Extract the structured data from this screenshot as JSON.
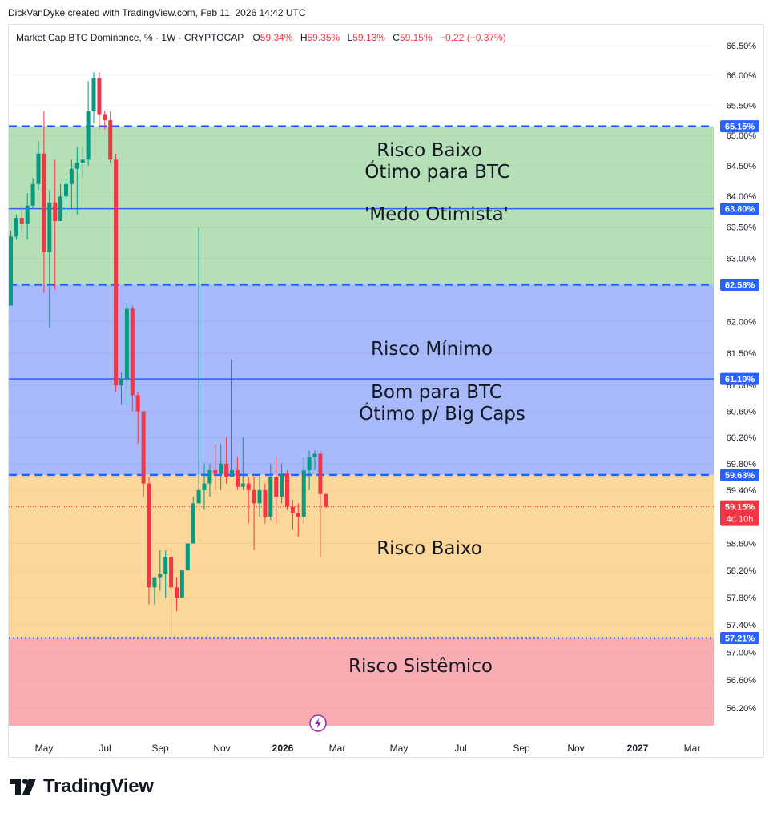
{
  "credit": "DickVanDyke created with TradingView.com, Feb 11, 2026 14:42 UTC",
  "header": {
    "symbol": "Market Cap BTC Dominance, % · 1W · CRYPTOCAP",
    "o_label": "O",
    "o_value": "59.34%",
    "h_label": "H",
    "h_value": "59.35%",
    "l_label": "L",
    "l_value": "59.13%",
    "c_label": "C",
    "c_value": "59.15%",
    "change": "−0.22 (−0.37%)"
  },
  "brand": "TradingView",
  "colors": {
    "up": "#089981",
    "down": "#f23645",
    "zone_green": "#b5dfb6",
    "zone_blue": "#a7b8fb",
    "zone_orange": "#fbd89a",
    "zone_red": "#f9adb3",
    "line_blue": "#2962ff",
    "label_blue": "#2962ff",
    "price_red": "#f23645"
  },
  "chart_data": {
    "type": "candlestick",
    "title": "Market Cap BTC Dominance, % · 1W · CRYPTOCAP",
    "y_scale": "log",
    "ylim": [
      55.95,
      66.85
    ],
    "y_ticks": [
      "66.50%",
      "66.00%",
      "65.50%",
      "65.00%",
      "64.50%",
      "64.00%",
      "63.50%",
      "63.00%",
      "62.00%",
      "61.50%",
      "61.00%",
      "60.60%",
      "60.20%",
      "59.80%",
      "59.40%",
      "58.60%",
      "58.20%",
      "57.80%",
      "57.40%",
      "57.00%",
      "56.60%",
      "56.20%"
    ],
    "x_ticks": [
      "May",
      "Jul",
      "Sep",
      "Nov",
      "2026",
      "Mar",
      "May",
      "Jul",
      "Sep",
      "Nov",
      "2027",
      "Mar"
    ],
    "candles": [
      {
        "o": 62.25,
        "h": 63.45,
        "l": 62.25,
        "c": 63.35
      },
      {
        "o": 63.35,
        "h": 63.7,
        "l": 63.3,
        "c": 63.65
      },
      {
        "o": 63.65,
        "h": 63.85,
        "l": 63.4,
        "c": 63.55
      },
      {
        "o": 63.55,
        "h": 64.05,
        "l": 63.3,
        "c": 63.85
      },
      {
        "o": 63.85,
        "h": 64.3,
        "l": 63.8,
        "c": 64.2
      },
      {
        "o": 64.2,
        "h": 64.9,
        "l": 64.1,
        "c": 64.7
      },
      {
        "o": 64.7,
        "h": 65.4,
        "l": 62.45,
        "c": 63.1
      },
      {
        "o": 63.1,
        "h": 64.1,
        "l": 61.9,
        "c": 63.9
      },
      {
        "o": 63.9,
        "h": 64.6,
        "l": 62.5,
        "c": 63.6
      },
      {
        "o": 63.6,
        "h": 64.2,
        "l": 63.6,
        "c": 64.0
      },
      {
        "o": 64.0,
        "h": 64.3,
        "l": 63.7,
        "c": 64.2
      },
      {
        "o": 64.2,
        "h": 64.6,
        "l": 63.8,
        "c": 64.45
      },
      {
        "o": 64.45,
        "h": 64.8,
        "l": 63.7,
        "c": 64.55
      },
      {
        "o": 64.55,
        "h": 64.8,
        "l": 64.3,
        "c": 64.6
      },
      {
        "o": 64.6,
        "h": 65.9,
        "l": 64.5,
        "c": 65.4
      },
      {
        "o": 65.4,
        "h": 66.05,
        "l": 65.2,
        "c": 65.95
      },
      {
        "o": 65.95,
        "h": 66.05,
        "l": 65.1,
        "c": 65.35
      },
      {
        "o": 65.35,
        "h": 65.4,
        "l": 65.1,
        "c": 65.25
      },
      {
        "o": 65.25,
        "h": 65.4,
        "l": 64.55,
        "c": 64.6
      },
      {
        "o": 64.6,
        "h": 64.7,
        "l": 60.9,
        "c": 61.0
      },
      {
        "o": 61.0,
        "h": 61.2,
        "l": 60.7,
        "c": 61.1
      },
      {
        "o": 61.1,
        "h": 62.3,
        "l": 60.7,
        "c": 62.2
      },
      {
        "o": 62.2,
        "h": 62.25,
        "l": 60.6,
        "c": 60.85
      },
      {
        "o": 60.85,
        "h": 60.9,
        "l": 60.1,
        "c": 60.6
      },
      {
        "o": 60.6,
        "h": 60.6,
        "l": 59.3,
        "c": 59.5
      },
      {
        "o": 59.5,
        "h": 59.6,
        "l": 57.7,
        "c": 57.95
      },
      {
        "o": 57.95,
        "h": 58.1,
        "l": 57.7,
        "c": 58.1
      },
      {
        "o": 58.1,
        "h": 58.5,
        "l": 57.9,
        "c": 58.15
      },
      {
        "o": 58.15,
        "h": 58.5,
        "l": 57.8,
        "c": 58.4
      },
      {
        "o": 58.4,
        "h": 58.5,
        "l": 57.2,
        "c": 57.95
      },
      {
        "o": 57.95,
        "h": 58.1,
        "l": 57.6,
        "c": 57.8
      },
      {
        "o": 57.8,
        "h": 58.2,
        "l": 57.8,
        "c": 58.2
      },
      {
        "o": 58.2,
        "h": 58.6,
        "l": 58.2,
        "c": 58.6
      },
      {
        "o": 58.6,
        "h": 59.3,
        "l": 58.6,
        "c": 59.2
      },
      {
        "o": 59.2,
        "h": 63.5,
        "l": 59.2,
        "c": 59.4
      },
      {
        "o": 59.4,
        "h": 59.8,
        "l": 59.1,
        "c": 59.5
      },
      {
        "o": 59.5,
        "h": 59.8,
        "l": 59.3,
        "c": 59.7
      },
      {
        "o": 59.7,
        "h": 60.1,
        "l": 59.4,
        "c": 59.65
      },
      {
        "o": 59.65,
        "h": 60.1,
        "l": 59.4,
        "c": 59.8
      },
      {
        "o": 59.8,
        "h": 60.2,
        "l": 59.5,
        "c": 59.6
      },
      {
        "o": 59.6,
        "h": 61.4,
        "l": 59.6,
        "c": 59.7
      },
      {
        "o": 59.7,
        "h": 59.9,
        "l": 59.4,
        "c": 59.45
      },
      {
        "o": 59.45,
        "h": 60.2,
        "l": 59.4,
        "c": 59.5
      },
      {
        "o": 59.5,
        "h": 59.6,
        "l": 58.9,
        "c": 59.4
      },
      {
        "o": 59.4,
        "h": 59.6,
        "l": 58.5,
        "c": 59.2
      },
      {
        "o": 59.2,
        "h": 59.6,
        "l": 59.0,
        "c": 59.4
      },
      {
        "o": 59.4,
        "h": 59.5,
        "l": 58.9,
        "c": 59.0
      },
      {
        "o": 59.0,
        "h": 59.8,
        "l": 58.95,
        "c": 59.6
      },
      {
        "o": 59.6,
        "h": 59.9,
        "l": 58.9,
        "c": 59.3
      },
      {
        "o": 59.3,
        "h": 59.8,
        "l": 59.2,
        "c": 59.65
      },
      {
        "o": 59.65,
        "h": 59.7,
        "l": 59.1,
        "c": 59.15
      },
      {
        "o": 59.15,
        "h": 59.25,
        "l": 58.8,
        "c": 59.05
      },
      {
        "o": 59.05,
        "h": 59.2,
        "l": 58.7,
        "c": 59.0
      },
      {
        "o": 59.0,
        "h": 59.9,
        "l": 58.9,
        "c": 59.7
      },
      {
        "o": 59.7,
        "h": 60.0,
        "l": 59.4,
        "c": 59.9
      },
      {
        "o": 59.9,
        "h": 60.0,
        "l": 59.7,
        "c": 59.95
      },
      {
        "o": 59.95,
        "h": 60.0,
        "l": 58.4,
        "c": 59.34
      },
      {
        "o": 59.34,
        "h": 59.35,
        "l": 59.13,
        "c": 59.15
      }
    ],
    "zones": [
      {
        "from": 62.58,
        "to": 65.15,
        "color": "zone_green"
      },
      {
        "from": 59.63,
        "to": 62.58,
        "color": "zone_blue"
      },
      {
        "from": 57.21,
        "to": 59.63,
        "color": "zone_orange"
      },
      {
        "from": 55.95,
        "to": 57.21,
        "color": "zone_red"
      }
    ],
    "levels": [
      {
        "price": 65.15,
        "label": "65.15%",
        "style": "dashed"
      },
      {
        "price": 63.8,
        "label": "63.80%",
        "style": "solid"
      },
      {
        "price": 62.58,
        "label": "62.58%",
        "style": "dashed"
      },
      {
        "price": 61.1,
        "label": "61.10%",
        "style": "solid"
      },
      {
        "price": 59.63,
        "label": "59.63%",
        "style": "dashed"
      },
      {
        "price": 57.21,
        "label": "57.21%",
        "style": "dotted"
      }
    ],
    "last_price": {
      "price": 59.15,
      "label": "59.15%",
      "countdown": "4d 10h"
    },
    "annotations": [
      "Risco Baixo",
      "Ótimo para BTC",
      "'Medo Otimista'",
      "Risco Mínimo",
      "Bom para BTC",
      "Ótimo p/ Big Caps",
      "Risco Baixo",
      "Risco Sistêmico"
    ]
  }
}
